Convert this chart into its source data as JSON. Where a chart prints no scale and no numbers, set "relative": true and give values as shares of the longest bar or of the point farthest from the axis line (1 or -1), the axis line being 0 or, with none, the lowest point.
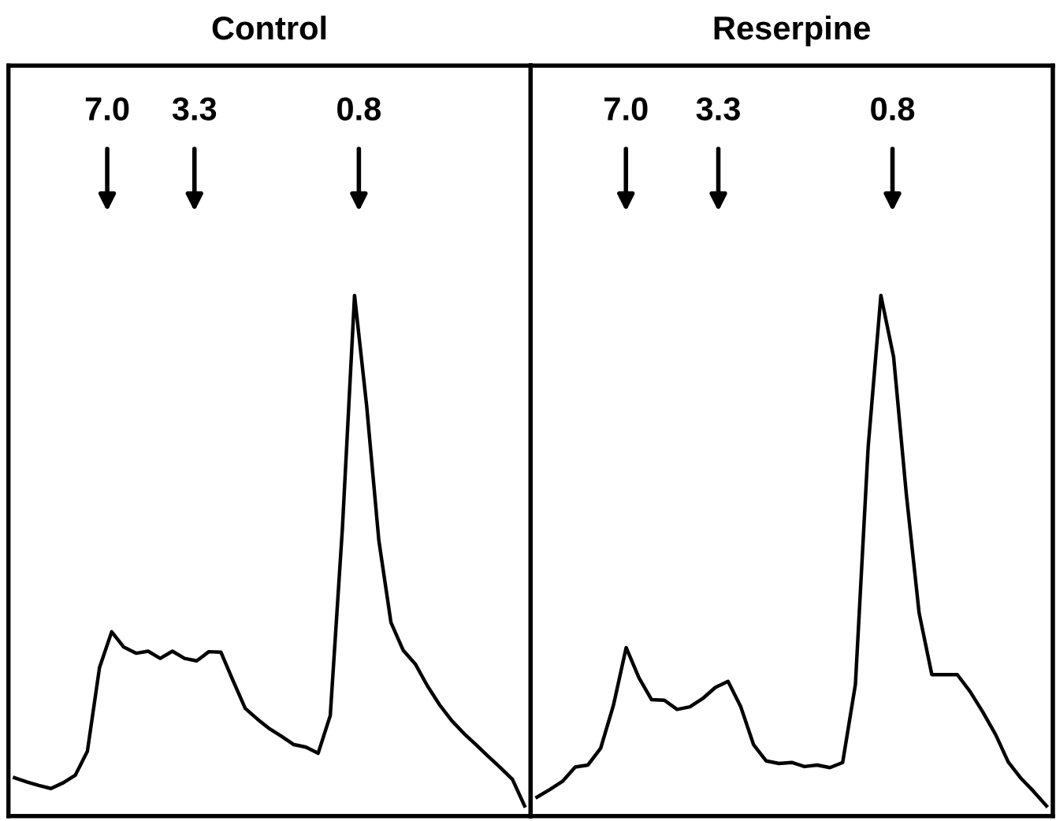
{
  "chart_data": [
    {
      "type": "line",
      "title": "Control",
      "relative": true,
      "marker": "none",
      "line_style": "solid",
      "categories": [
        null,
        null,
        null,
        null,
        null,
        null,
        null,
        null,
        null,
        null,
        null,
        null,
        null,
        null,
        null,
        null,
        null,
        null,
        null,
        null,
        null,
        null,
        null,
        null,
        null,
        null,
        null,
        null,
        null,
        null,
        null,
        null,
        null,
        null,
        null,
        null,
        null,
        null,
        null,
        null,
        null,
        null,
        null
      ],
      "series": [
        {
          "color": "#000000",
          "values": [
            0.055,
            0.047,
            0.04,
            0.034,
            0.045,
            0.06,
            0.107,
            0.271,
            0.341,
            0.311,
            0.299,
            0.303,
            0.289,
            0.303,
            0.289,
            0.284,
            0.302,
            0.301,
            0.245,
            0.191,
            0.17,
            0.151,
            0.136,
            0.12,
            0.115,
            0.103,
            0.177,
            0.544,
            1.0,
            0.783,
            0.52,
            0.359,
            0.305,
            0.278,
            0.235,
            0.198,
            0.167,
            0.142,
            0.12,
            0.097,
            0.075,
            0.052,
            0.0
          ]
        }
      ],
      "log": "x2",
      "x2lim": [
        16.4,
        0.182
      ],
      "x2ticks": [
        {
          "value": 7.0,
          "label": "7.0"
        },
        {
          "value": 3.3,
          "label": "3.3"
        },
        {
          "value": 0.8,
          "label": "0.8"
        }
      ]
    },
    {
      "type": "line",
      "title": "Reserpine",
      "relative": true,
      "marker": "none",
      "line_style": "solid",
      "categories": [
        null,
        null,
        null,
        null,
        null,
        null,
        null,
        null,
        null,
        null,
        null,
        null,
        null,
        null,
        null,
        null,
        null,
        null,
        null,
        null,
        null,
        null,
        null,
        null,
        null,
        null,
        null,
        null,
        null,
        null,
        null,
        null,
        null,
        null,
        null,
        null,
        null,
        null,
        null,
        null,
        null
      ],
      "series": [
        {
          "color": "#000000",
          "values": [
            0.017,
            0.032,
            0.048,
            0.076,
            0.08,
            0.113,
            0.197,
            0.31,
            0.251,
            0.208,
            0.207,
            0.189,
            0.194,
            0.21,
            0.232,
            0.244,
            0.194,
            0.12,
            0.088,
            0.083,
            0.085,
            0.077,
            0.08,
            0.075,
            0.085,
            0.238,
            0.703,
            1.0,
            0.879,
            0.61,
            0.378,
            0.257,
            0.257,
            0.257,
            0.224,
            0.184,
            0.14,
            0.086,
            0.054,
            0.028,
            0.0
          ]
        }
      ],
      "log": "x2",
      "x2lim": [
        15.2,
        0.217
      ],
      "x2ticks": [
        {
          "value": 7.0,
          "label": "7.0"
        },
        {
          "value": 3.3,
          "label": "3.3"
        },
        {
          "value": 0.8,
          "label": "0.8"
        }
      ]
    }
  ]
}
